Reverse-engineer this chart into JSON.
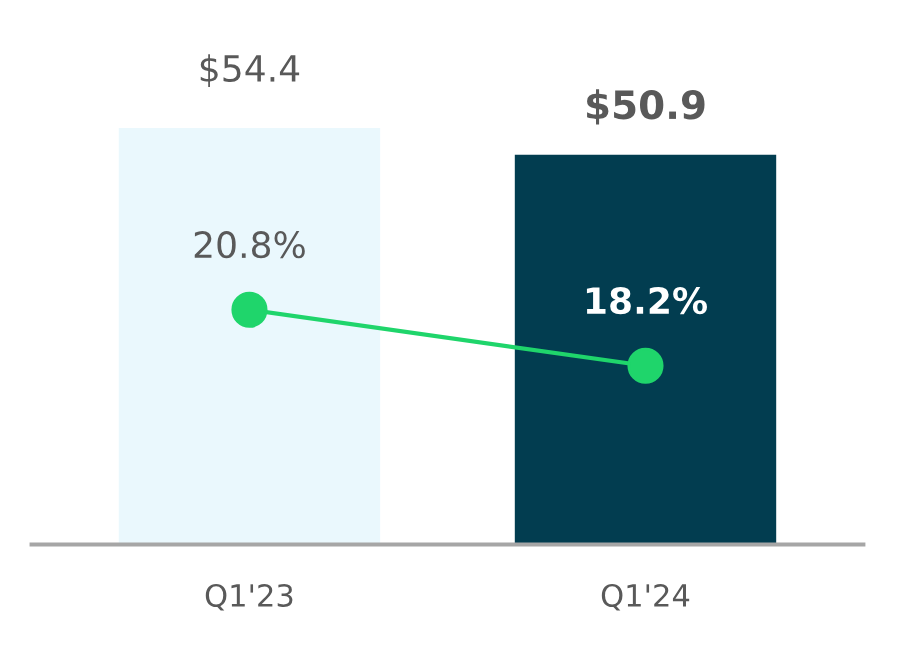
{
  "chart_data": {
    "type": "bar",
    "categories": [
      "Q1'23",
      "Q1'24"
    ],
    "tick_labels": "x",
    "grid": false,
    "series": [
      {
        "colors": [
          "#eaf8fd",
          "#023d50"
        ],
        "values": [
          54.4,
          50.9
        ],
        "value_labels": [
          "$54.4",
          "$50.9"
        ]
      },
      {
        "type": "line",
        "axis": "y2",
        "color": "#1fd56b",
        "marker": "circle",
        "line_style": "solid",
        "values": [
          20.8,
          18.2
        ],
        "value_labels": [
          "20.8%",
          "18.2%"
        ]
      }
    ]
  }
}
